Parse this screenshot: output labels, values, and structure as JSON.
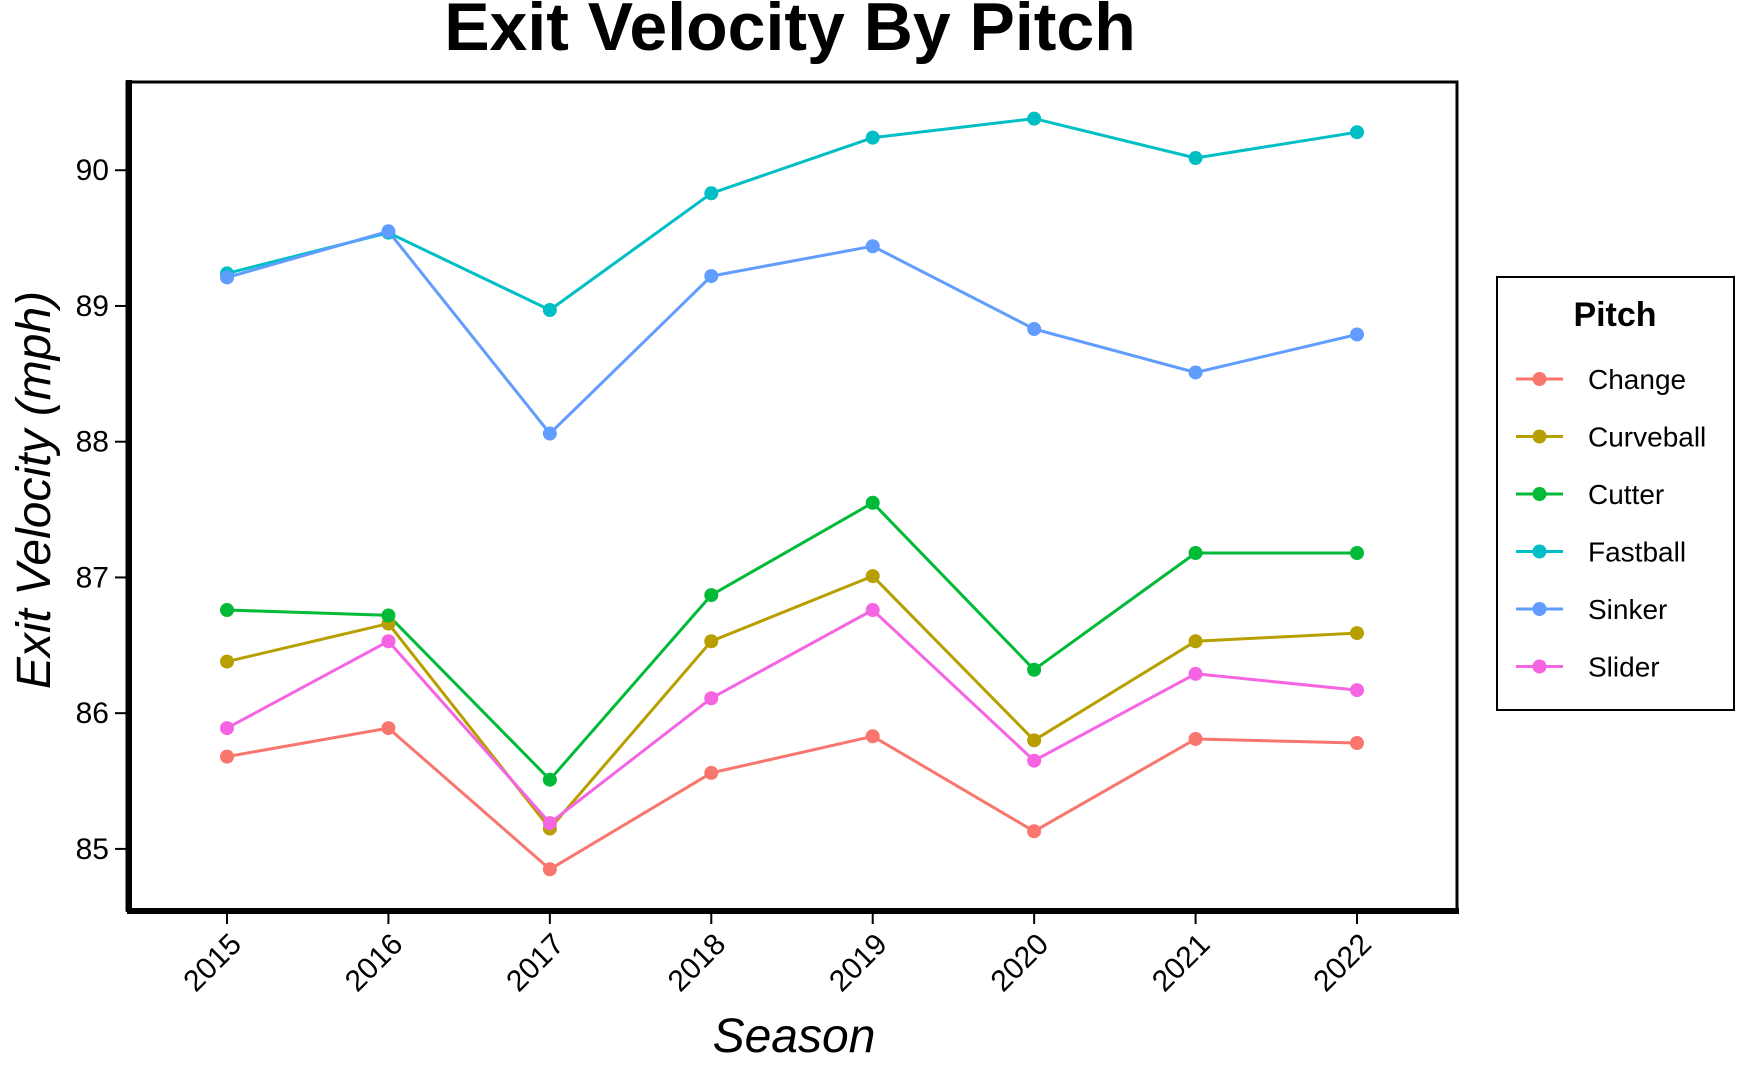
{
  "chart_data": {
    "type": "line",
    "title": "Exit Velocity By Pitch",
    "xlabel": "Season",
    "ylabel": "Exit Velocity (mph)",
    "x": [
      "2015",
      "2016",
      "2017",
      "2018",
      "2019",
      "2020",
      "2021",
      "2022"
    ],
    "ylim": [
      84.55,
      90.65
    ],
    "yticks": [
      "85",
      "86",
      "87",
      "88",
      "89",
      "90"
    ],
    "grid": false,
    "legend": {
      "title": "Pitch",
      "position": "right"
    },
    "series": [
      {
        "name": "Change",
        "color": "#F8766D",
        "values": [
          85.68,
          85.89,
          84.85,
          85.56,
          85.83,
          85.13,
          85.81,
          85.78
        ]
      },
      {
        "name": "Curveball",
        "color": "#B79F00",
        "values": [
          86.38,
          86.66,
          85.15,
          86.53,
          87.01,
          85.8,
          86.53,
          86.59
        ]
      },
      {
        "name": "Cutter",
        "color": "#00BA38",
        "values": [
          86.76,
          86.72,
          85.51,
          86.87,
          87.55,
          86.32,
          87.18,
          87.18
        ]
      },
      {
        "name": "Fastball",
        "color": "#00BFC4",
        "values": [
          89.24,
          89.54,
          88.97,
          89.83,
          90.24,
          90.38,
          90.09,
          90.28
        ]
      },
      {
        "name": "Sinker",
        "color": "#619CFF",
        "values": [
          89.21,
          89.55,
          88.06,
          89.22,
          89.44,
          88.83,
          88.51,
          88.79
        ]
      },
      {
        "name": "Slider",
        "color": "#F564E3",
        "values": [
          85.89,
          86.53,
          85.19,
          86.11,
          86.76,
          85.65,
          86.29,
          86.17
        ]
      }
    ]
  }
}
